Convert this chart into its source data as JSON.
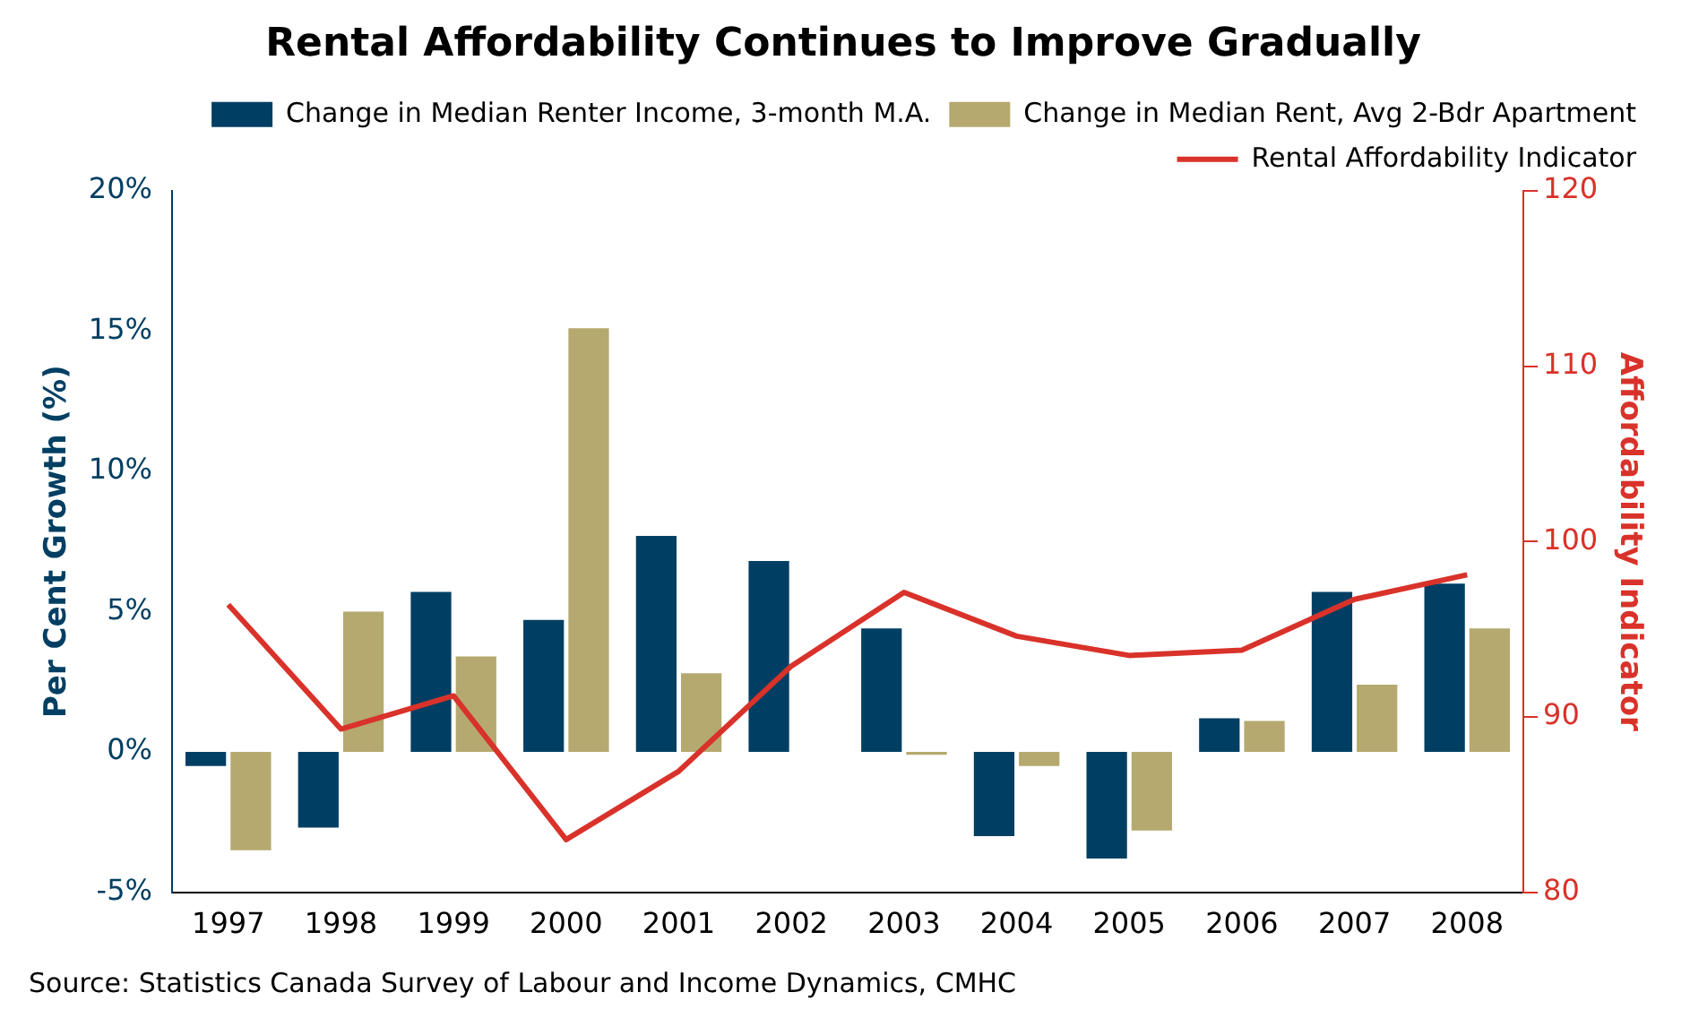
{
  "chart_data": {
    "type": "bar",
    "title": "Rental Affordability Continues to Improve Gradually",
    "categories": [
      "1997",
      "1998",
      "1999",
      "2000",
      "2001",
      "2002",
      "2003",
      "2004",
      "2005",
      "2006",
      "2007",
      "2008"
    ],
    "series": [
      {
        "name": "Change in Median Renter Income, 3-month M.A.",
        "color": "#003f63",
        "values": [
          -0.5,
          -2.7,
          5.7,
          4.7,
          7.7,
          6.8,
          4.4,
          -3.0,
          -3.8,
          1.2,
          5.7,
          6.0
        ]
      },
      {
        "name": "Change in Median Rent, Avg 2-Bdr Apartment",
        "color": "#b5a96f",
        "values": [
          -3.5,
          5.0,
          3.4,
          15.1,
          2.8,
          null,
          -0.1,
          -0.5,
          -2.8,
          1.1,
          2.4,
          4.4
        ]
      },
      {
        "name": "Rental Affordability Indicator",
        "type": "line",
        "axis": "y2",
        "color": "#d9322a",
        "values": [
          96.4,
          89.3,
          91.2,
          83.0,
          86.9,
          92.9,
          97.1,
          94.6,
          93.5,
          93.8,
          96.7,
          98.1
        ]
      }
    ],
    "ylabel": "Per Cent Growth (%)",
    "y2label": "Affordability Indicator",
    "ylim": [
      -5,
      20
    ],
    "yticks": [
      {
        "value": -5,
        "label": "-5%"
      },
      {
        "value": 0,
        "label": "0%"
      },
      {
        "value": 5,
        "label": "5%"
      },
      {
        "value": 10,
        "label": "10%"
      },
      {
        "value": 15,
        "label": "15%"
      },
      {
        "value": 20,
        "label": "20%"
      }
    ],
    "y2lim": [
      80,
      120
    ],
    "y2ticks": [
      80,
      90,
      100,
      110,
      120
    ],
    "legend": "top right",
    "grid": false,
    "marker": "none",
    "line_style": "solid",
    "annotations": [
      "Source: Statistics Canada Survey of Labour and Income Dynamics, CMHC"
    ]
  }
}
